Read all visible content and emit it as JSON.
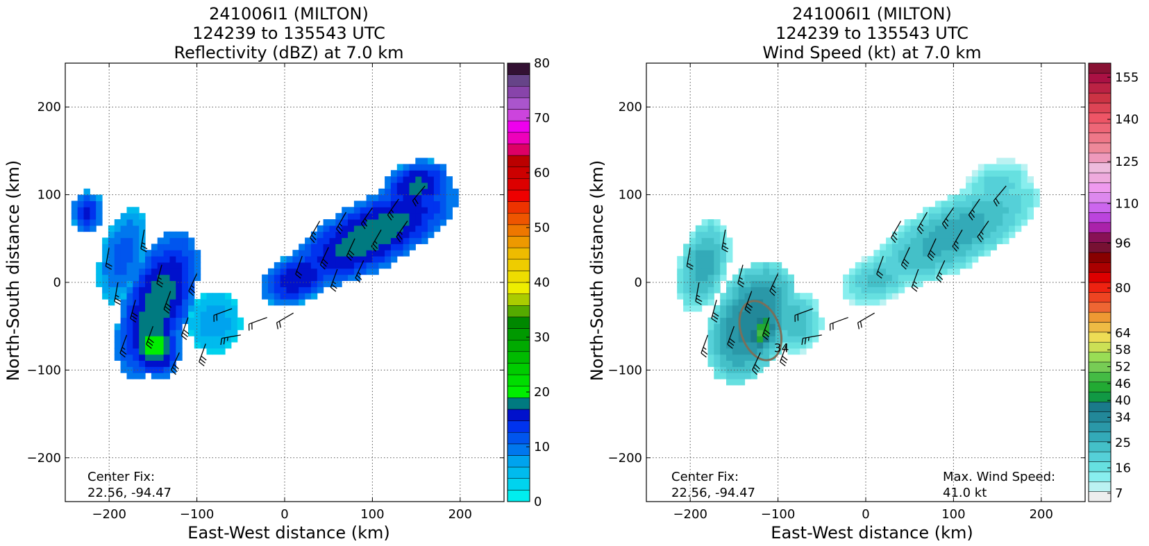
{
  "chart_data": [
    {
      "type": "heatmap",
      "title_lines": [
        "241006I1 (MILTON)",
        "124239 to 135543 UTC",
        "Reflectivity (dBZ) at 7.0 km"
      ],
      "xlabel": "East-West distance (km)",
      "ylabel": "North-South distance (km)",
      "xlim": [
        -250,
        250
      ],
      "ylim": [
        -250,
        250
      ],
      "xticks": [
        -200,
        -100,
        0,
        100,
        200
      ],
      "yticks": [
        -200,
        -100,
        0,
        100,
        200
      ],
      "xtick_labels": [
        "−200",
        "−100",
        "0",
        "100",
        "200"
      ],
      "ytick_labels": [
        "−200",
        "−100",
        "0",
        "100",
        "200"
      ],
      "grid": true,
      "annotation_lines": [
        "Center Fix:",
        "22.56, -94.47"
      ],
      "colorbar": {
        "min": 0,
        "max": 80,
        "step": 2.5,
        "ticks": [
          0,
          10,
          20,
          30,
          40,
          50,
          60,
          70,
          80
        ],
        "colors": [
          "#00eeee",
          "#00d3ee",
          "#00bbee",
          "#00a3ee",
          "#0077ee",
          "#0055ee",
          "#0033ee",
          "#0011cc",
          "#007a80",
          "#00ee00",
          "#00dd00",
          "#00cc00",
          "#00bb00",
          "#00aa00",
          "#009900",
          "#008800",
          "#55aa00",
          "#aacc00",
          "#eeee00",
          "#eedd00",
          "#eecc00",
          "#eebb00",
          "#ee9900",
          "#ee7700",
          "#ee5500",
          "#ee3300",
          "#ee0000",
          "#dd0000",
          "#cc0000",
          "#bb0000",
          "#dd0066",
          "#ee00bb",
          "#ee00ee",
          "#cc44dd",
          "#aa55cc",
          "#8844aa",
          "#664488",
          "#331133"
        ]
      },
      "field_blobs": [
        {
          "cx": 100,
          "cy": 55,
          "rx": 110,
          "ry": 40,
          "rot": 28,
          "peak": 22
        },
        {
          "cx": 150,
          "cy": 110,
          "rx": 40,
          "ry": 28,
          "rot": 20,
          "peak": 21
        },
        {
          "cx": 15,
          "cy": 5,
          "rx": 45,
          "ry": 28,
          "rot": 25,
          "peak": 20
        },
        {
          "cx": -145,
          "cy": -25,
          "rx": 38,
          "ry": 90,
          "rot": -20,
          "peak": 22
        },
        {
          "cx": -185,
          "cy": 30,
          "rx": 25,
          "ry": 55,
          "rot": -15,
          "peak": 14
        },
        {
          "cx": -225,
          "cy": 80,
          "rx": 18,
          "ry": 25,
          "rot": 0,
          "peak": 18
        },
        {
          "cx": -80,
          "cy": -45,
          "rx": 30,
          "ry": 35,
          "rot": 0,
          "peak": 9
        },
        {
          "cx": -150,
          "cy": -70,
          "rx": 30,
          "ry": 40,
          "rot": 20,
          "peak": 24
        }
      ]
    },
    {
      "type": "heatmap",
      "title_lines": [
        "241006I1 (MILTON)",
        "124239 to 135543 UTC",
        "Wind Speed (kt) at 7.0 km"
      ],
      "xlabel": "East-West distance (km)",
      "ylabel": "North-South distance (km)",
      "xlim": [
        -250,
        250
      ],
      "ylim": [
        -250,
        250
      ],
      "xticks": [
        -200,
        -100,
        0,
        100,
        200
      ],
      "yticks": [
        -200,
        -100,
        0,
        100,
        200
      ],
      "xtick_labels": [
        "−200",
        "−100",
        "0",
        "100",
        "200"
      ],
      "ytick_labels": [
        "−200",
        "−100",
        "0",
        "100",
        "200"
      ],
      "grid": true,
      "annotation_lines": [
        "Center Fix:",
        "22.56, -94.47"
      ],
      "max_wind_lines": [
        "Max. Wind Speed:",
        "41.0 kt"
      ],
      "contour_label": "34",
      "colorbar": {
        "min": 4,
        "max": 160,
        "step": 3,
        "ticks": [
          7,
          16,
          25,
          34,
          40,
          46,
          52,
          58,
          64,
          80,
          96,
          110,
          125,
          140,
          155
        ],
        "colors": [
          "#eeeeee",
          "#bbf2f2",
          "#88eeee",
          "#66e0e0",
          "#55d0d8",
          "#44c0c8",
          "#33aab8",
          "#2a98a8",
          "#228899",
          "#1a7a8a",
          "#119944",
          "#22aa33",
          "#44bb44",
          "#77cc55",
          "#99dd55",
          "#cce055",
          "#eedd55",
          "#eebb44",
          "#ee9933",
          "#ee6633",
          "#ee4422",
          "#ee2211",
          "#dd0000",
          "#aa0000",
          "#880000",
          "#771133",
          "#881155",
          "#aa22aa",
          "#bb44dd",
          "#cc66ee",
          "#dd88ee",
          "#ee99ee",
          "#eeaadd",
          "#eebbdd",
          "#ee99bb",
          "#ee8899",
          "#ee7788",
          "#ee6677",
          "#ee5566",
          "#dd4455",
          "#cc3344",
          "#bb2244",
          "#aa1144",
          "#881133"
        ]
      },
      "field_blobs": [
        {
          "cx": 100,
          "cy": 55,
          "rx": 110,
          "ry": 40,
          "rot": 28,
          "peak": 24
        },
        {
          "cx": 150,
          "cy": 110,
          "rx": 40,
          "ry": 28,
          "rot": 20,
          "peak": 18
        },
        {
          "cx": 15,
          "cy": 5,
          "rx": 45,
          "ry": 28,
          "rot": 25,
          "peak": 20
        },
        {
          "cx": -130,
          "cy": -45,
          "rx": 45,
          "ry": 75,
          "rot": -25,
          "peak": 30
        },
        {
          "cx": -185,
          "cy": 20,
          "rx": 28,
          "ry": 55,
          "rot": -15,
          "peak": 24
        },
        {
          "cx": -80,
          "cy": -45,
          "rx": 30,
          "ry": 35,
          "rot": 0,
          "peak": 22
        },
        {
          "cx": -118,
          "cy": -55,
          "rx": 14,
          "ry": 24,
          "rot": -20,
          "peak": 42
        }
      ],
      "wind_contour": {
        "cx": -120,
        "cy": -55,
        "rx": 22,
        "ry": 35,
        "rot": -20
      }
    }
  ],
  "wind_barbs": {
    "points": [
      {
        "x": 40,
        "y": 70,
        "dir": 210,
        "speed": 25
      },
      {
        "x": 70,
        "y": 80,
        "dir": 210,
        "speed": 25
      },
      {
        "x": 100,
        "y": 85,
        "dir": 215,
        "speed": 25
      },
      {
        "x": 130,
        "y": 95,
        "dir": 215,
        "speed": 25
      },
      {
        "x": 160,
        "y": 110,
        "dir": 220,
        "speed": 20
      },
      {
        "x": 50,
        "y": 40,
        "dir": 205,
        "speed": 30
      },
      {
        "x": 80,
        "y": 50,
        "dir": 205,
        "speed": 30
      },
      {
        "x": 110,
        "y": 60,
        "dir": 210,
        "speed": 25
      },
      {
        "x": 140,
        "y": 70,
        "dir": 215,
        "speed": 25
      },
      {
        "x": 20,
        "y": 30,
        "dir": 200,
        "speed": 20
      },
      {
        "x": 60,
        "y": 15,
        "dir": 200,
        "speed": 25
      },
      {
        "x": 90,
        "y": 25,
        "dir": 205,
        "speed": 25
      },
      {
        "x": -20,
        "y": -40,
        "dir": 250,
        "speed": 20
      },
      {
        "x": 10,
        "y": -35,
        "dir": 240,
        "speed": 20
      },
      {
        "x": -50,
        "y": -60,
        "dir": 260,
        "speed": 25
      },
      {
        "x": -90,
        "y": -70,
        "dir": 200,
        "speed": 30
      },
      {
        "x": -110,
        "y": -40,
        "dir": 200,
        "speed": 30
      },
      {
        "x": -130,
        "y": -10,
        "dir": 200,
        "speed": 30
      },
      {
        "x": -150,
        "y": -50,
        "dir": 200,
        "speed": 30
      },
      {
        "x": -170,
        "y": -20,
        "dir": 195,
        "speed": 30
      },
      {
        "x": -140,
        "y": 20,
        "dir": 195,
        "speed": 25
      },
      {
        "x": -160,
        "y": 60,
        "dir": 190,
        "speed": 25
      },
      {
        "x": -190,
        "y": 0,
        "dir": 190,
        "speed": 25
      },
      {
        "x": -200,
        "y": 40,
        "dir": 190,
        "speed": 20
      },
      {
        "x": -120,
        "y": -80,
        "dir": 205,
        "speed": 30
      },
      {
        "x": -180,
        "y": -60,
        "dir": 200,
        "speed": 25
      },
      {
        "x": -100,
        "y": 10,
        "dir": 205,
        "speed": 25
      },
      {
        "x": -60,
        "y": -30,
        "dir": 250,
        "speed": 20
      }
    ]
  }
}
